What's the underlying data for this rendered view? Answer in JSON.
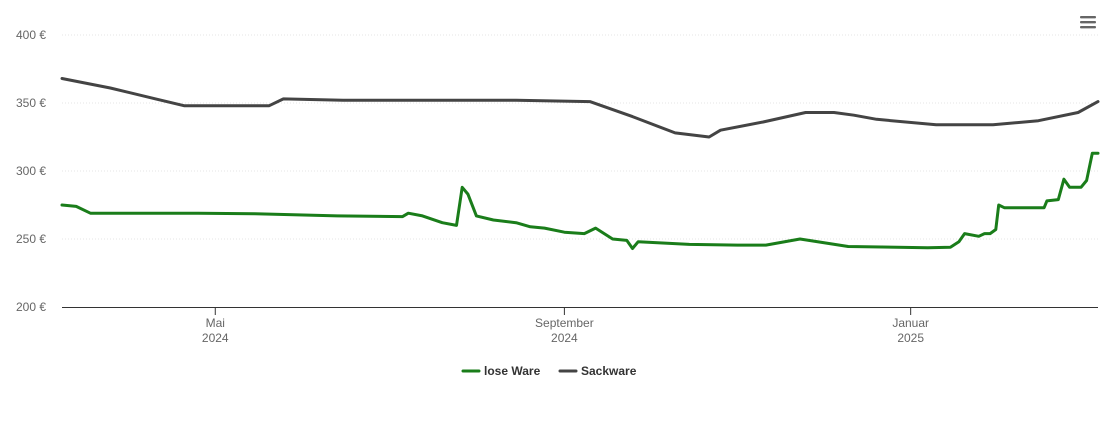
{
  "chart_data": {
    "type": "line",
    "title": "",
    "xlabel": "",
    "ylabel": "",
    "ylim": [
      200,
      400
    ],
    "xlim": [
      "2024-03-08",
      "2025-03-08"
    ],
    "y_ticks": [
      {
        "value": 200,
        "label": "200 €"
      },
      {
        "value": 250,
        "label": "250 €"
      },
      {
        "value": 300,
        "label": "300 €"
      },
      {
        "value": 350,
        "label": "350 €"
      },
      {
        "value": 400,
        "label": "400 €"
      }
    ],
    "x_ticks": [
      {
        "date": "2024-05-01",
        "label": "Mai",
        "year": "2024"
      },
      {
        "date": "2024-09-01",
        "label": "September",
        "year": "2024"
      },
      {
        "date": "2025-01-01",
        "label": "Januar",
        "year": "2025"
      }
    ],
    "grid": true,
    "legend": "bottom-center",
    "series": [
      {
        "name": "lose Ware",
        "color": "#1a7d1a",
        "points": [
          [
            "2024-03-08",
            275
          ],
          [
            "2024-03-13",
            274
          ],
          [
            "2024-03-18",
            269
          ],
          [
            "2024-04-25",
            269
          ],
          [
            "2024-05-15",
            268.5
          ],
          [
            "2024-06-13",
            267
          ],
          [
            "2024-07-06",
            266.5
          ],
          [
            "2024-07-08",
            269
          ],
          [
            "2024-07-13",
            267
          ],
          [
            "2024-07-20",
            262
          ],
          [
            "2024-07-25",
            260
          ],
          [
            "2024-07-27",
            288
          ],
          [
            "2024-07-29",
            283
          ],
          [
            "2024-08-01",
            267
          ],
          [
            "2024-08-07",
            264
          ],
          [
            "2024-08-15",
            262
          ],
          [
            "2024-08-20",
            259
          ],
          [
            "2024-08-25",
            258
          ],
          [
            "2024-09-01",
            255
          ],
          [
            "2024-09-08",
            254
          ],
          [
            "2024-09-12",
            258
          ],
          [
            "2024-09-18",
            250
          ],
          [
            "2024-09-23",
            249
          ],
          [
            "2024-09-25",
            243
          ],
          [
            "2024-09-27",
            248
          ],
          [
            "2024-10-15",
            246
          ],
          [
            "2024-11-01",
            245.5
          ],
          [
            "2024-11-11",
            245.5
          ],
          [
            "2024-11-23",
            250
          ],
          [
            "2024-12-10",
            244.5
          ],
          [
            "2025-01-07",
            243.5
          ],
          [
            "2025-01-15",
            244
          ],
          [
            "2025-01-18",
            248
          ],
          [
            "2025-01-20",
            254
          ],
          [
            "2025-01-25",
            252
          ],
          [
            "2025-01-27",
            254
          ],
          [
            "2025-01-29",
            254
          ],
          [
            "2025-01-31",
            257
          ],
          [
            "2025-02-01",
            275
          ],
          [
            "2025-02-03",
            273
          ],
          [
            "2025-02-17",
            273
          ],
          [
            "2025-02-18",
            278
          ],
          [
            "2025-02-22",
            279
          ],
          [
            "2025-02-24",
            294
          ],
          [
            "2025-02-26",
            288
          ],
          [
            "2025-03-02",
            288
          ],
          [
            "2025-03-04",
            293
          ],
          [
            "2025-03-06",
            313
          ],
          [
            "2025-03-08",
            313
          ]
        ]
      },
      {
        "name": "Sackware",
        "color": "#444444",
        "points": [
          [
            "2024-03-08",
            368
          ],
          [
            "2024-03-25",
            361
          ],
          [
            "2024-04-10",
            353
          ],
          [
            "2024-04-20",
            348
          ],
          [
            "2024-05-15",
            348
          ],
          [
            "2024-05-20",
            348
          ],
          [
            "2024-05-25",
            353
          ],
          [
            "2024-06-15",
            352
          ],
          [
            "2024-07-15",
            352
          ],
          [
            "2024-08-15",
            352
          ],
          [
            "2024-09-10",
            351
          ],
          [
            "2024-09-25",
            340
          ],
          [
            "2024-10-10",
            328
          ],
          [
            "2024-10-22",
            325
          ],
          [
            "2024-10-26",
            330
          ],
          [
            "2024-11-10",
            336
          ],
          [
            "2024-11-25",
            343
          ],
          [
            "2024-12-05",
            343
          ],
          [
            "2024-12-12",
            341
          ],
          [
            "2024-12-20",
            338
          ],
          [
            "2025-01-10",
            334
          ],
          [
            "2025-01-30",
            334
          ],
          [
            "2025-02-15",
            337
          ],
          [
            "2025-03-01",
            343
          ],
          [
            "2025-03-08",
            351
          ]
        ]
      }
    ]
  }
}
